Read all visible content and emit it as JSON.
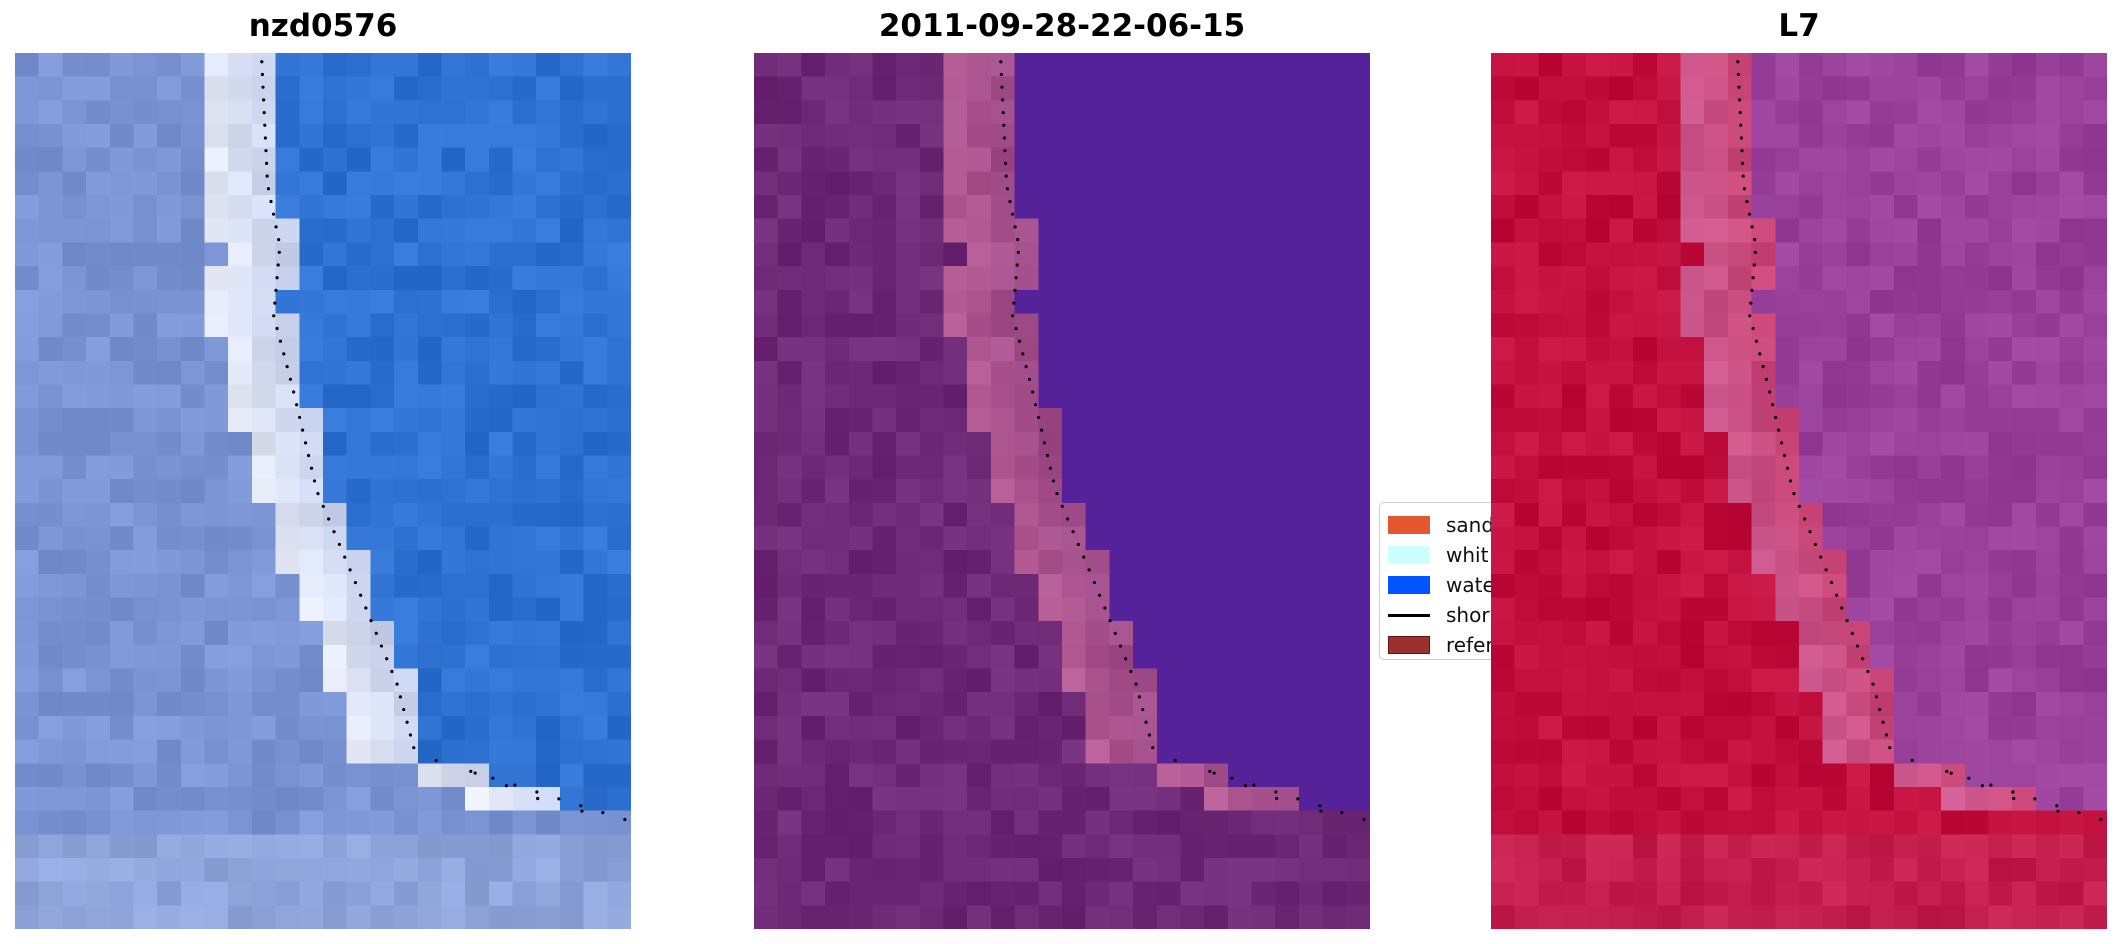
{
  "panels": [
    {
      "title": "nzd0576",
      "palette": {
        "land": "#7a94d4",
        "shore": "#e8ecf8",
        "water": "#2f72d2"
      }
    },
    {
      "title": "2011-09-28-22-06-15",
      "palette": {
        "land": "#6e2a76",
        "shore": "#b45a92",
        "water": "#55229a"
      }
    },
    {
      "title": "L7",
      "palette": {
        "land": "#c2103e",
        "shore": "#cc5a8e",
        "water": "#98409a"
      }
    }
  ],
  "legend": {
    "items": [
      {
        "label": "sand",
        "color": "#e3572f",
        "kind": "patch"
      },
      {
        "label": "whit",
        "color": "#ccffff",
        "kind": "patch"
      },
      {
        "label": "wate",
        "color": "#0055ff",
        "kind": "patch"
      },
      {
        "label": "shor",
        "color": "#000000",
        "kind": "line"
      },
      {
        "label": "refer",
        "color": "#9a3030",
        "kind": "patch"
      }
    ]
  }
}
